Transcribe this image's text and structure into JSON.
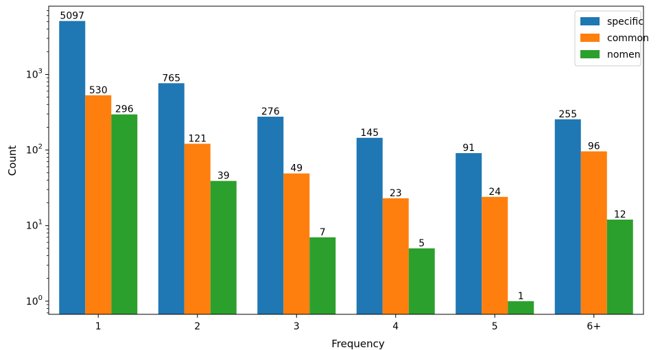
{
  "chart_data": {
    "type": "bar",
    "scale": "log",
    "categories": [
      "1",
      "2",
      "3",
      "4",
      "5",
      "6+"
    ],
    "series": [
      {
        "name": "specific",
        "color": "#1f77b4",
        "values": [
          5097,
          765,
          276,
          145,
          91,
          255
        ]
      },
      {
        "name": "common",
        "color": "#ff7f0e",
        "values": [
          530,
          121,
          49,
          23,
          24,
          96
        ]
      },
      {
        "name": "nomen",
        "color": "#2ca02c",
        "values": [
          296,
          39,
          7,
          5,
          1,
          12
        ]
      }
    ],
    "xlabel": "Frequency",
    "ylabel": "Count",
    "ylim": [
      0.67,
      8000
    ],
    "yticks": [
      1,
      10,
      100,
      1000
    ],
    "grid": false,
    "legend_position": "top-right"
  }
}
